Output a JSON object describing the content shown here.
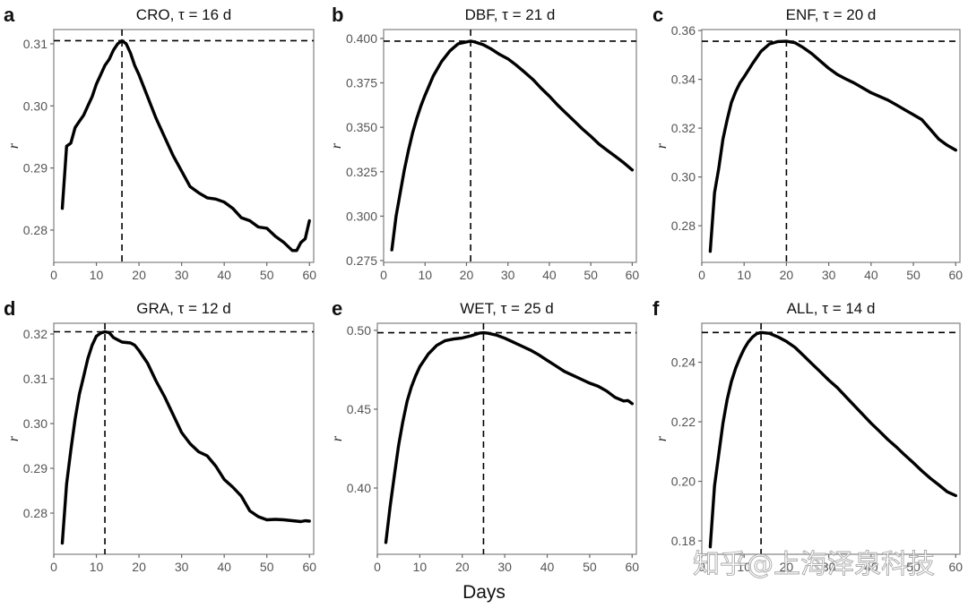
{
  "chart_data": [
    {
      "type": "line",
      "panel": "a",
      "title": "CRO, τ = 16 d",
      "xlabel": "",
      "ylabel": "r",
      "xlim": [
        0,
        61
      ],
      "ylim": [
        0.2748,
        0.3123
      ],
      "xticks": [
        0,
        10,
        20,
        30,
        40,
        50,
        60
      ],
      "yticks": [
        0.28,
        0.29,
        0.3,
        0.31
      ],
      "ytick_labels": [
        "0.28",
        "0.29",
        "0.30",
        "0.31"
      ],
      "peak": {
        "x": 16,
        "y": 0.3105
      },
      "grid": false,
      "x": [
        2,
        3,
        4,
        5,
        6,
        7,
        8,
        9,
        10,
        11,
        12,
        13,
        14,
        15,
        16,
        17,
        18,
        19,
        20,
        22,
        24,
        26,
        28,
        30,
        32,
        34,
        36,
        38,
        40,
        42,
        44,
        46,
        48,
        50,
        52,
        54,
        56,
        57,
        58,
        59,
        60
      ],
      "y": [
        0.2835,
        0.2935,
        0.294,
        0.2965,
        0.2975,
        0.2985,
        0.3,
        0.3015,
        0.3035,
        0.305,
        0.3065,
        0.3075,
        0.309,
        0.31,
        0.3105,
        0.31,
        0.3085,
        0.3065,
        0.305,
        0.3015,
        0.298,
        0.295,
        0.292,
        0.2895,
        0.287,
        0.286,
        0.2852,
        0.285,
        0.2845,
        0.2835,
        0.282,
        0.2815,
        0.2805,
        0.2803,
        0.279,
        0.278,
        0.2767,
        0.2767,
        0.278,
        0.2786,
        0.2815
      ]
    },
    {
      "type": "line",
      "panel": "b",
      "title": "DBF, τ = 21 d",
      "xlabel": "",
      "ylabel": "r",
      "xlim": [
        0,
        61
      ],
      "ylim": [
        0.274,
        0.405
      ],
      "xticks": [
        0,
        10,
        20,
        30,
        40,
        50,
        60
      ],
      "yticks": [
        0.275,
        0.3,
        0.325,
        0.35,
        0.375,
        0.4
      ],
      "ytick_labels": [
        "0.275",
        "0.300",
        "0.325",
        "0.350",
        "0.375",
        "0.400"
      ],
      "peak": {
        "x": 21,
        "y": 0.3985
      },
      "grid": false,
      "x": [
        2,
        3,
        4,
        5,
        6,
        7,
        8,
        9,
        10,
        12,
        14,
        16,
        18,
        20,
        21,
        22,
        24,
        26,
        28,
        30,
        32,
        34,
        36,
        38,
        40,
        42,
        44,
        46,
        48,
        50,
        52,
        54,
        56,
        58,
        60
      ],
      "y": [
        0.281,
        0.3,
        0.313,
        0.326,
        0.337,
        0.347,
        0.355,
        0.362,
        0.368,
        0.379,
        0.387,
        0.393,
        0.397,
        0.398,
        0.3985,
        0.398,
        0.3965,
        0.394,
        0.391,
        0.3885,
        0.385,
        0.381,
        0.377,
        0.372,
        0.3675,
        0.3625,
        0.358,
        0.3535,
        0.349,
        0.345,
        0.3405,
        0.337,
        0.3335,
        0.33,
        0.326
      ]
    },
    {
      "type": "line",
      "panel": "c",
      "title": "ENF, τ = 20 d",
      "xlabel": "",
      "ylabel": "r",
      "xlim": [
        0,
        61
      ],
      "ylim": [
        0.265,
        0.3604
      ],
      "xticks": [
        0,
        10,
        20,
        30,
        40,
        50,
        60
      ],
      "yticks": [
        0.28,
        0.3,
        0.32,
        0.34,
        0.36
      ],
      "ytick_labels": [
        "0.28",
        "0.30",
        "0.32",
        "0.34",
        "0.36"
      ],
      "peak": {
        "x": 20,
        "y": 0.3556
      },
      "grid": false,
      "x": [
        2,
        3,
        4,
        5,
        6,
        7,
        8,
        9,
        10,
        12,
        14,
        16,
        18,
        20,
        22,
        24,
        26,
        28,
        30,
        32,
        34,
        36,
        38,
        40,
        42,
        44,
        46,
        48,
        50,
        52,
        54,
        56,
        58,
        60
      ],
      "y": [
        0.2695,
        0.2935,
        0.3035,
        0.3155,
        0.3235,
        0.3305,
        0.335,
        0.3385,
        0.341,
        0.3465,
        0.3515,
        0.3545,
        0.3555,
        0.3556,
        0.355,
        0.353,
        0.3505,
        0.3475,
        0.3445,
        0.342,
        0.3402,
        0.3385,
        0.3365,
        0.3345,
        0.333,
        0.3315,
        0.3295,
        0.3275,
        0.3255,
        0.3235,
        0.3195,
        0.3155,
        0.313,
        0.311
      ]
    },
    {
      "type": "line",
      "panel": "d",
      "title": "GRA, τ = 12 d",
      "xlabel": "",
      "ylabel": "r",
      "xlim": [
        0,
        61
      ],
      "ylim": [
        0.2708,
        0.3224
      ],
      "xticks": [
        0,
        10,
        20,
        30,
        40,
        50,
        60
      ],
      "yticks": [
        0.28,
        0.29,
        0.3,
        0.31,
        0.32
      ],
      "ytick_labels": [
        "0.28",
        "0.29",
        "0.30",
        "0.31",
        "0.32"
      ],
      "peak": {
        "x": 12,
        "y": 0.3205
      },
      "grid": false,
      "x": [
        2,
        3,
        4,
        5,
        6,
        7,
        8,
        9,
        10,
        11,
        12,
        13,
        14,
        15,
        16,
        18,
        19,
        20,
        22,
        24,
        26,
        28,
        30,
        32,
        34,
        36,
        38,
        40,
        42,
        44,
        46,
        48,
        50,
        52,
        54,
        56,
        58,
        59,
        60
      ],
      "y": [
        0.2733,
        0.2865,
        0.294,
        0.301,
        0.3065,
        0.3105,
        0.3145,
        0.3175,
        0.3195,
        0.3202,
        0.3205,
        0.3203,
        0.3192,
        0.3187,
        0.3182,
        0.318,
        0.3175,
        0.3163,
        0.3135,
        0.3095,
        0.306,
        0.302,
        0.298,
        0.2955,
        0.2937,
        0.2928,
        0.2905,
        0.2875,
        0.2858,
        0.2838,
        0.2805,
        0.2792,
        0.2785,
        0.2786,
        0.2785,
        0.2783,
        0.2781,
        0.2783,
        0.2782
      ]
    },
    {
      "type": "line",
      "panel": "e",
      "title": "WET, τ = 25 d",
      "xlabel": "",
      "ylabel": "r",
      "xlim": [
        0,
        61
      ],
      "ylim": [
        0.358,
        0.5045
      ],
      "xticks": [
        0,
        10,
        20,
        30,
        40,
        50,
        60
      ],
      "yticks": [
        0.4,
        0.45,
        0.5
      ],
      "ytick_labels": [
        "0.40",
        "0.45",
        "0.50"
      ],
      "peak": {
        "x": 25,
        "y": 0.4985
      },
      "grid": false,
      "x": [
        2,
        3,
        4,
        5,
        6,
        7,
        8,
        9,
        10,
        12,
        14,
        16,
        18,
        20,
        22,
        24,
        25,
        26,
        28,
        30,
        32,
        34,
        36,
        38,
        40,
        42,
        44,
        46,
        48,
        50,
        52,
        54,
        56,
        58,
        59,
        60
      ],
      "y": [
        0.3655,
        0.388,
        0.408,
        0.427,
        0.442,
        0.455,
        0.464,
        0.471,
        0.477,
        0.485,
        0.4905,
        0.4935,
        0.4945,
        0.4952,
        0.4965,
        0.4982,
        0.4985,
        0.4982,
        0.497,
        0.495,
        0.4925,
        0.49,
        0.4875,
        0.4845,
        0.481,
        0.4775,
        0.474,
        0.4715,
        0.469,
        0.4665,
        0.4645,
        0.4615,
        0.4575,
        0.4552,
        0.4555,
        0.4535
      ]
    },
    {
      "type": "line",
      "panel": "f",
      "title": "ALL, τ = 14 d",
      "xlabel": "Days",
      "ylabel": "r",
      "xlim": [
        0,
        61
      ],
      "ylim": [
        0.1755,
        0.2531
      ],
      "xticks": [
        0,
        10,
        20,
        30,
        40,
        50,
        60
      ],
      "yticks": [
        0.18,
        0.2,
        0.22,
        0.24
      ],
      "ytick_labels": [
        "0.18",
        "0.20",
        "0.22",
        "0.24"
      ],
      "peak": {
        "x": 14,
        "y": 0.25
      },
      "grid": false,
      "x": [
        2,
        3,
        4,
        5,
        6,
        7,
        8,
        9,
        10,
        11,
        12,
        13,
        14,
        16,
        18,
        20,
        22,
        24,
        26,
        28,
        30,
        32,
        34,
        36,
        38,
        40,
        42,
        44,
        46,
        48,
        50,
        52,
        54,
        56,
        58,
        60
      ],
      "y": [
        0.178,
        0.1985,
        0.209,
        0.2195,
        0.2275,
        0.2335,
        0.238,
        0.2415,
        0.2445,
        0.2468,
        0.2485,
        0.2496,
        0.25,
        0.2497,
        0.2485,
        0.247,
        0.245,
        0.2423,
        0.2395,
        0.2368,
        0.234,
        0.2315,
        0.2285,
        0.2255,
        0.2225,
        0.2195,
        0.2168,
        0.214,
        0.2115,
        0.2088,
        0.2062,
        0.2035,
        0.201,
        0.1988,
        0.1965,
        0.1952
      ]
    }
  ],
  "figure": {
    "shared_xlabel": "Days",
    "watermark": "知乎@上海泽泉科技"
  }
}
